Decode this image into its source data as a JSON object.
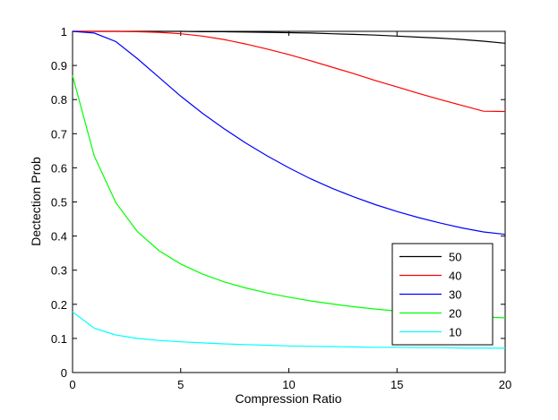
{
  "chart_data": {
    "type": "line",
    "xlabel": "Compression Ratio",
    "ylabel": "Dectection Prob",
    "xlim": [
      0,
      20
    ],
    "ylim": [
      0,
      1
    ],
    "x_ticks": [
      0,
      5,
      10,
      15,
      20
    ],
    "y_ticks": [
      0,
      0.1,
      0.2,
      0.3,
      0.4,
      0.5,
      0.6,
      0.7,
      0.8,
      0.9,
      1
    ],
    "grid": false,
    "legend_position": "lower-right",
    "series": [
      {
        "name": "50",
        "color": "#000000",
        "x": [
          0,
          1,
          2,
          3,
          4,
          5,
          6,
          7,
          8,
          9,
          10,
          11,
          12,
          13,
          14,
          15,
          16,
          17,
          18,
          19,
          20
        ],
        "y": [
          1.0,
          1.0,
          1.0,
          1.0,
          1.0,
          1.0,
          0.999,
          0.999,
          0.998,
          0.997,
          0.996,
          0.995,
          0.993,
          0.991,
          0.989,
          0.986,
          0.983,
          0.98,
          0.976,
          0.971,
          0.965
        ]
      },
      {
        "name": "40",
        "color": "#ff0000",
        "x": [
          0,
          1,
          2,
          3,
          4,
          5,
          6,
          7,
          8,
          9,
          10,
          11,
          12,
          13,
          14,
          15,
          16,
          17,
          18,
          19,
          20
        ],
        "y": [
          1.0,
          1.0,
          1.0,
          0.999,
          0.997,
          0.993,
          0.986,
          0.976,
          0.963,
          0.948,
          0.932,
          0.914,
          0.895,
          0.876,
          0.856,
          0.837,
          0.818,
          0.8,
          0.783,
          0.766,
          0.765
        ]
      },
      {
        "name": "30",
        "color": "#0000ff",
        "x": [
          0,
          1,
          2,
          3,
          4,
          5,
          6,
          7,
          8,
          9,
          10,
          11,
          12,
          13,
          14,
          15,
          16,
          17,
          18,
          19,
          20
        ],
        "y": [
          1.0,
          0.995,
          0.97,
          0.92,
          0.865,
          0.81,
          0.76,
          0.715,
          0.673,
          0.635,
          0.6,
          0.568,
          0.54,
          0.515,
          0.492,
          0.472,
          0.454,
          0.438,
          0.424,
          0.412,
          0.405
        ]
      },
      {
        "name": "20",
        "color": "#00ff00",
        "x": [
          0,
          1,
          2,
          3,
          4,
          5,
          6,
          7,
          8,
          9,
          10,
          11,
          12,
          13,
          14,
          15,
          16,
          17,
          18,
          19,
          20
        ],
        "y": [
          0.87,
          0.635,
          0.498,
          0.413,
          0.357,
          0.318,
          0.289,
          0.266,
          0.248,
          0.233,
          0.221,
          0.21,
          0.201,
          0.193,
          0.186,
          0.18,
          0.175,
          0.17,
          0.166,
          0.163,
          0.16
        ]
      },
      {
        "name": "10",
        "color": "#00ffff",
        "x": [
          0,
          1,
          2,
          3,
          4,
          5,
          6,
          7,
          8,
          9,
          10,
          11,
          12,
          13,
          14,
          15,
          16,
          17,
          18,
          19,
          20
        ],
        "y": [
          0.178,
          0.13,
          0.11,
          0.1,
          0.094,
          0.09,
          0.087,
          0.084,
          0.082,
          0.08,
          0.078,
          0.077,
          0.076,
          0.075,
          0.074,
          0.074,
          0.073,
          0.073,
          0.072,
          0.072,
          0.071
        ]
      }
    ]
  }
}
